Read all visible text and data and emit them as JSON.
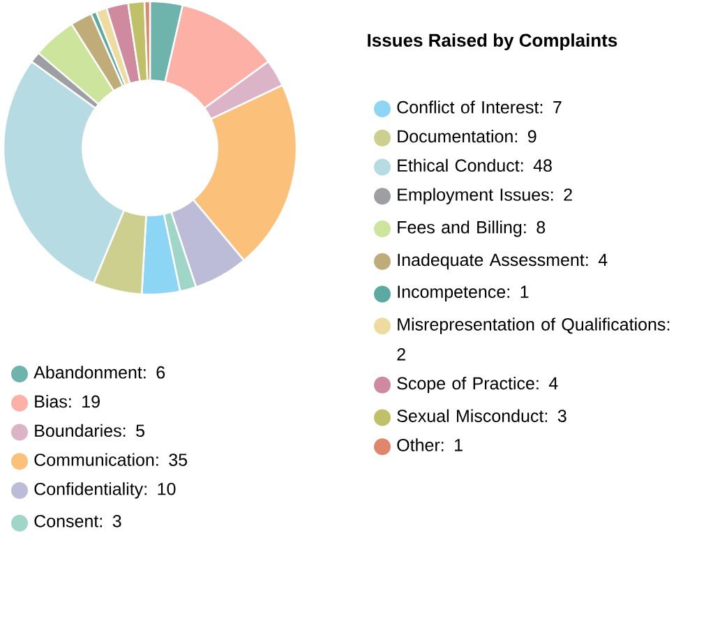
{
  "chart_data": {
    "type": "donut",
    "title": "Issues Raised by Complaints",
    "categories": [
      "Abandonment",
      "Bias",
      "Boundaries",
      "Communication",
      "Confidentiality",
      "Consent",
      "Conflict of Interest",
      "Documentation",
      "Ethical Conduct",
      "Employment Issues",
      "Fees and Billing",
      "Inadequate Assessment",
      "Incompetence",
      "Misrepresentation of Qualifications",
      "Scope of Practice",
      "Sexual Misconduct",
      "Other"
    ],
    "values": [
      6,
      19,
      5,
      35,
      10,
      3,
      7,
      9,
      48,
      2,
      8,
      4,
      1,
      2,
      4,
      3,
      1
    ],
    "colors": [
      "#6fb3ad",
      "#fdb0a6",
      "#dcb4c8",
      "#fbc07a",
      "#bdbcd8",
      "#9fd6c7",
      "#8dd5f5",
      "#cdcf8e",
      "#b7dbe2",
      "#9e9fa3",
      "#cce49b",
      "#bfac78",
      "#5aaaa1",
      "#eddba0",
      "#d08aa0",
      "#bfc068",
      "#e0866a"
    ],
    "value_labels": [
      ": 6",
      ": 19",
      ": 5",
      ": 35",
      ":  10",
      ": 3",
      ": 7",
      ": 9",
      ": 48",
      ": 2",
      ": 8",
      ": 4",
      ": 1",
      ": 2",
      ": 4",
      ": 3",
      ": 1"
    ],
    "legend": "right"
  }
}
